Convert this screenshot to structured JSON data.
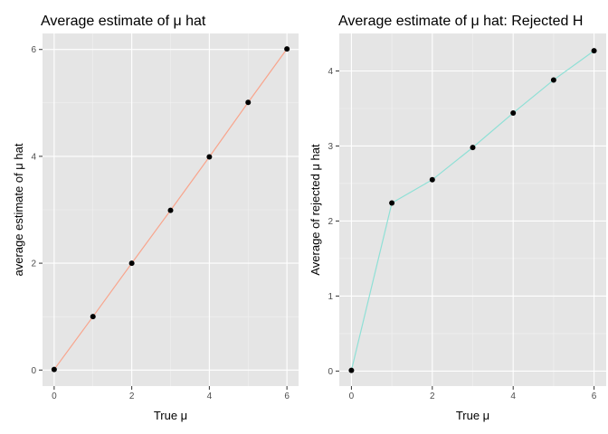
{
  "chart_data": [
    {
      "type": "line",
      "title": "Average estimate of μ hat",
      "xlabel": "True μ",
      "ylabel": "average estimate of μ hat",
      "x": [
        0,
        1,
        2,
        3,
        4,
        5,
        6
      ],
      "series": [
        {
          "values": [
            0.01,
            1.0,
            2.0,
            2.99,
            3.99,
            5.01,
            6.01
          ]
        }
      ],
      "line_color": "#F8A58D",
      "point_color": "#000000",
      "xlim": [
        -0.3,
        6.3
      ],
      "ylim": [
        -0.3,
        6.3
      ],
      "x_ticks": [
        0,
        2,
        4,
        6
      ],
      "y_ticks": [
        0,
        2,
        4,
        6
      ],
      "grid": true
    },
    {
      "type": "line",
      "title": "Average estimate of μ hat: Rejected H",
      "xlabel": "True μ",
      "ylabel": "Average of rejected μ hat",
      "x": [
        0,
        1,
        2,
        3,
        4,
        5,
        6
      ],
      "series": [
        {
          "values": [
            0.01,
            2.24,
            2.55,
            2.98,
            3.44,
            3.88,
            4.27
          ]
        }
      ],
      "line_color": "#8FE0D6",
      "point_color": "#000000",
      "xlim": [
        -0.3,
        6.3
      ],
      "ylim": [
        -0.2,
        4.5
      ],
      "x_ticks": [
        0,
        2,
        4,
        6
      ],
      "y_ticks": [
        0,
        1,
        2,
        3,
        4
      ],
      "grid": true
    }
  ]
}
